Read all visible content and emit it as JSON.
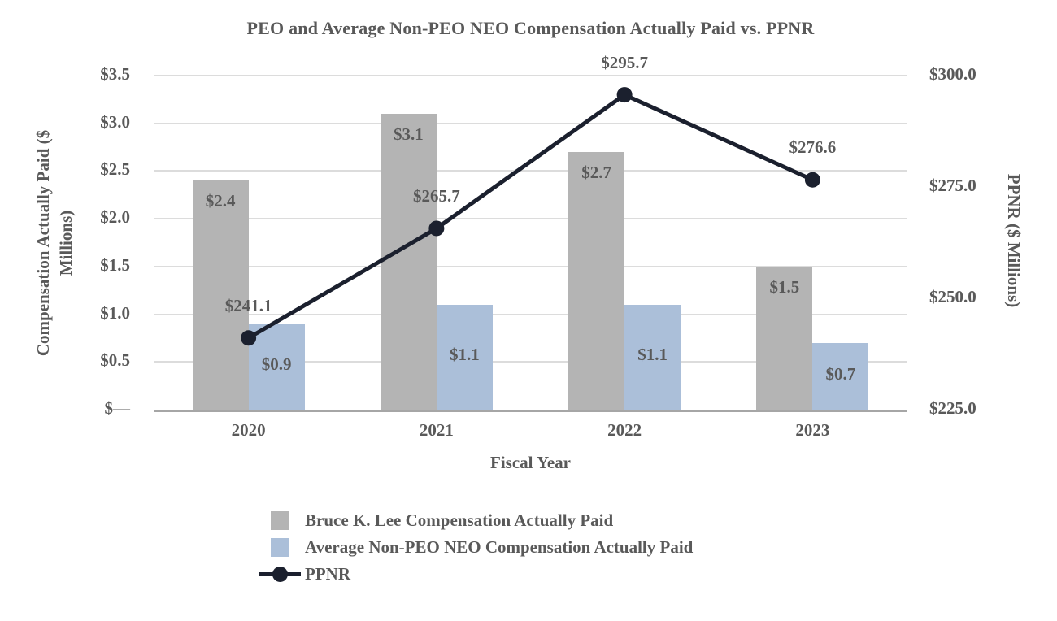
{
  "chart_data": {
    "type": "combo-bar-line",
    "title": "PEO and Average Non-PEO NEO Compensation Actually Paid vs. PPNR",
    "xlabel": "Fiscal Year",
    "categories": [
      "2020",
      "2021",
      "2022",
      "2023"
    ],
    "grid": true,
    "legend_position": "bottom-left",
    "left_axis": {
      "label": "Compensation Actually Paid ($ Millions)",
      "range": [
        0,
        3.5
      ],
      "ticks": [
        {
          "label": "$3.5",
          "value": 3.5
        },
        {
          "label": "$3.0",
          "value": 3.0
        },
        {
          "label": "$2.5",
          "value": 2.5
        },
        {
          "label": "$2.0",
          "value": 2.0
        },
        {
          "label": "$1.5",
          "value": 1.5
        },
        {
          "label": "$1.0",
          "value": 1.0
        },
        {
          "label": "$0.5",
          "value": 0.5
        },
        {
          "label": "$—",
          "value": 0
        }
      ]
    },
    "right_axis": {
      "label": "PPNR ($ Millions)",
      "range": [
        225,
        300
      ],
      "ticks": [
        {
          "label": "$300.0",
          "value": 300
        },
        {
          "label": "$275.0",
          "value": 275
        },
        {
          "label": "$250.0",
          "value": 250
        },
        {
          "label": "$225.0",
          "value": 225
        }
      ]
    },
    "series": [
      {
        "name": "Bruce K. Lee Compensation Actually Paid",
        "type": "bar",
        "axis": "left",
        "color": "#b4b4b4",
        "values": [
          2.4,
          3.1,
          2.7,
          1.5
        ],
        "labels": [
          "$2.4",
          "$3.1",
          "$2.7",
          "$1.5"
        ]
      },
      {
        "name": "Average Non-PEO NEO Compensation Actually Paid",
        "type": "bar",
        "axis": "left",
        "color": "#abbfd9",
        "values": [
          0.9,
          1.1,
          1.1,
          0.7
        ],
        "labels": [
          "$0.9",
          "$1.1",
          "$1.1",
          "$0.7"
        ]
      },
      {
        "name": "PPNR",
        "type": "line",
        "axis": "right",
        "color": "#1b202e",
        "values": [
          241.1,
          265.7,
          295.7,
          276.6
        ],
        "labels": [
          "$241.1",
          "$265.7",
          "$295.7",
          "$276.6"
        ]
      }
    ],
    "colors": {
      "text": "#595959",
      "gridline": "#dcdcdc",
      "axis_line": "#a6a6a6",
      "background": "#ffffff"
    }
  }
}
